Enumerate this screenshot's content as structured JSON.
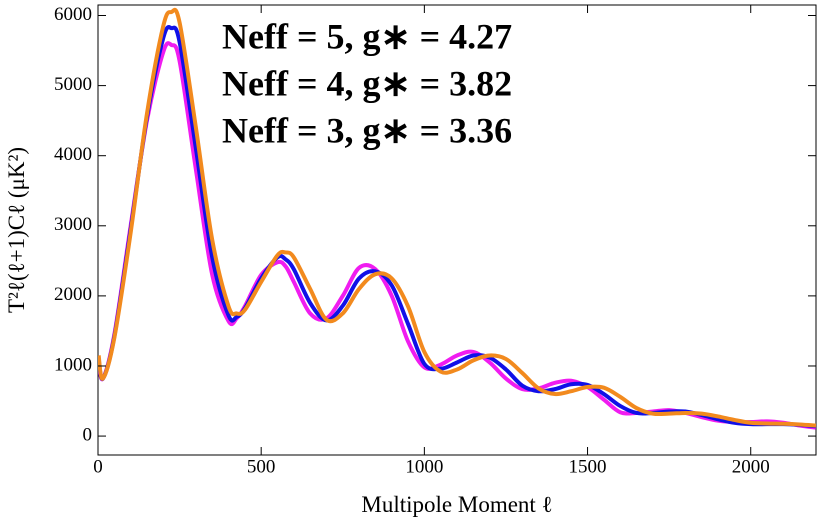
{
  "chart_data": {
    "type": "line",
    "xlabel": "Multipole Moment ℓ",
    "ylabel": "T²ℓ(ℓ+1)Cℓ (μK²)",
    "x": [
      2,
      15,
      50,
      100,
      150,
      200,
      225,
      250,
      300,
      350,
      400,
      425,
      450,
      500,
      550,
      575,
      600,
      650,
      700,
      750,
      800,
      850,
      900,
      950,
      1000,
      1050,
      1100,
      1150,
      1200,
      1250,
      1300,
      1350,
      1400,
      1450,
      1500,
      1550,
      1600,
      1650,
      1700,
      1750,
      1800,
      1850,
      1900,
      1950,
      2000,
      2050,
      2100,
      2150,
      2200
    ],
    "series": [
      {
        "name": "Neff = 5,  g∗ = 4.27",
        "color": "#f28a1e",
        "values": [
          1150,
          820,
          1400,
          2900,
          4600,
          5850,
          6050,
          5900,
          4400,
          2800,
          1850,
          1750,
          1800,
          2200,
          2580,
          2620,
          2550,
          2100,
          1660,
          1750,
          2100,
          2310,
          2250,
          1850,
          1200,
          920,
          950,
          1080,
          1150,
          1100,
          900,
          680,
          600,
          640,
          700,
          690,
          560,
          400,
          320,
          320,
          330,
          320,
          280,
          230,
          190,
          180,
          175,
          165,
          150
        ]
      },
      {
        "name": "Neff = 4,  g∗ = 3.82",
        "color": "#1010e8",
        "values": [
          1100,
          820,
          1420,
          2950,
          4550,
          5680,
          5820,
          5620,
          4100,
          2550,
          1720,
          1700,
          1820,
          2250,
          2550,
          2520,
          2380,
          1900,
          1650,
          1860,
          2250,
          2350,
          2150,
          1600,
          1030,
          960,
          1050,
          1150,
          1120,
          950,
          720,
          640,
          670,
          740,
          730,
          600,
          430,
          330,
          330,
          350,
          350,
          300,
          240,
          190,
          170,
          170,
          170,
          160,
          140
        ]
      },
      {
        "name": "Neff = 3,  g∗ = 3.36",
        "color": "#f01cf0",
        "values": [
          1050,
          820,
          1450,
          3000,
          4500,
          5480,
          5580,
          5350,
          3800,
          2300,
          1640,
          1680,
          1850,
          2300,
          2480,
          2420,
          2200,
          1750,
          1680,
          2000,
          2400,
          2380,
          2000,
          1350,
          980,
          1020,
          1150,
          1200,
          1050,
          820,
          670,
          680,
          760,
          790,
          700,
          520,
          340,
          330,
          350,
          370,
          330,
          270,
          220,
          200,
          200,
          210,
          190,
          150,
          120
        ]
      }
    ],
    "xlim": [
      0,
      2200
    ],
    "ylim": [
      -270,
      6150
    ],
    "xticks": [
      0,
      500,
      1000,
      1500,
      2000
    ],
    "yticks": [
      0,
      1000,
      2000,
      3000,
      4000,
      5000,
      6000
    ],
    "grid": false
  }
}
